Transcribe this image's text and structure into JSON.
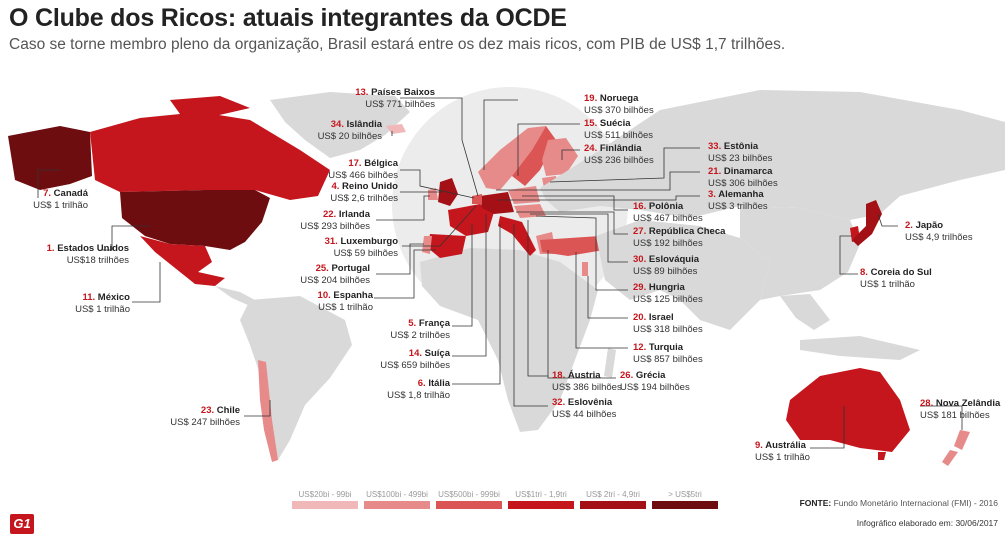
{
  "header": {
    "title": "O Clube dos Ricos: atuais integrantes da OCDE",
    "subtitle": "Caso se torne membro pleno da organização, Brasil estará entre os dez mais ricos, com PIB de US$ 1,7 trilhões."
  },
  "colors": {
    "land": "#d9d9d9",
    "tier1": "#f0b8b8",
    "tier2": "#e78a8a",
    "tier3": "#dc5555",
    "tier4": "#c4161c",
    "tier5": "#a31016",
    "tier6": "#6e0d10"
  },
  "countries": [
    {
      "rank": "1.",
      "name": "Estados Unidos",
      "gdp": "US$18 trilhões"
    },
    {
      "rank": "2.",
      "name": "Japão",
      "gdp": "US$ 4,9 trilhões"
    },
    {
      "rank": "3.",
      "name": "Alemanha",
      "gdp": "US$ 3 trilhões"
    },
    {
      "rank": "4.",
      "name": "Reino Unido",
      "gdp": "US$ 2,6 trilhões"
    },
    {
      "rank": "5.",
      "name": "França",
      "gdp": "US$ 2 trilhões"
    },
    {
      "rank": "6.",
      "name": "Itália",
      "gdp": "US$ 1,8 trilhão"
    },
    {
      "rank": "7.",
      "name": "Canadá",
      "gdp": "US$ 1 trilhão"
    },
    {
      "rank": "8.",
      "name": "Coreia do Sul",
      "gdp": "US$ 1 trilhão"
    },
    {
      "rank": "9.",
      "name": "Austrália",
      "gdp": "US$ 1 trilhão"
    },
    {
      "rank": "10.",
      "name": "Espanha",
      "gdp": "US$ 1 trilhão"
    },
    {
      "rank": "11.",
      "name": "México",
      "gdp": "US$ 1 trilhão"
    },
    {
      "rank": "12.",
      "name": "Turquia",
      "gdp": "US$ 857 bilhões"
    },
    {
      "rank": "13.",
      "name": "Países Baixos",
      "gdp": "US$ 771 bilhões"
    },
    {
      "rank": "14.",
      "name": "Suíça",
      "gdp": "US$ 659 bilhões"
    },
    {
      "rank": "15.",
      "name": "Suécia",
      "gdp": "US$ 511 bilhões"
    },
    {
      "rank": "16.",
      "name": "Polônia",
      "gdp": "US$ 467 bilhões"
    },
    {
      "rank": "17.",
      "name": "Bélgica",
      "gdp": "US$ 466 bilhões"
    },
    {
      "rank": "18.",
      "name": "Áustria",
      "gdp": "US$ 386 bilhões"
    },
    {
      "rank": "19.",
      "name": "Noruega",
      "gdp": "US$ 370 bilhões"
    },
    {
      "rank": "20.",
      "name": "Israel",
      "gdp": "US$ 318 bilhões"
    },
    {
      "rank": "21.",
      "name": "Dinamarca",
      "gdp": "US$ 306 bilhões"
    },
    {
      "rank": "22.",
      "name": "Irlanda",
      "gdp": "US$ 293 bilhões"
    },
    {
      "rank": "23.",
      "name": "Chile",
      "gdp": "US$ 247 bilhões"
    },
    {
      "rank": "24.",
      "name": "Finlândia",
      "gdp": "US$ 236 bilhões"
    },
    {
      "rank": "25.",
      "name": "Portugal",
      "gdp": "US$ 204 bilhões"
    },
    {
      "rank": "26.",
      "name": "Grécia",
      "gdp": "US$ 194 bilhões"
    },
    {
      "rank": "27.",
      "name": "República Checa",
      "gdp": "US$ 192 bilhões"
    },
    {
      "rank": "28.",
      "name": "Nova Zelândia",
      "gdp": "US$ 181 bilhões"
    },
    {
      "rank": "29.",
      "name": "Hungria",
      "gdp": "US$ 125 bilhões"
    },
    {
      "rank": "30.",
      "name": "Eslováquia",
      "gdp": "US$ 89 bilhões"
    },
    {
      "rank": "31.",
      "name": "Luxemburgo",
      "gdp": "US$ 59 bilhões"
    },
    {
      "rank": "32.",
      "name": "Eslovênia",
      "gdp": "US$ 44 bilhões"
    },
    {
      "rank": "33.",
      "name": "Estônia",
      "gdp": "US$ 23 bilhões"
    },
    {
      "rank": "34.",
      "name": "Islândia",
      "gdp": "US$ 20 bilhões"
    }
  ],
  "legend": [
    {
      "label": "US$20bi - 99bi"
    },
    {
      "label": "US$100bi - 499bi"
    },
    {
      "label": "US$500bi - 999bi"
    },
    {
      "label": "US$1tri - 1,9tri"
    },
    {
      "label": "US$ 2tri - 4,9tri"
    },
    {
      "label": "> US$5tri"
    }
  ],
  "footer": {
    "source_label": "FONTE:",
    "source_text": "Fundo Monetário Internacional (FMI) - 2016",
    "date": "Infográfico elaborado em: 30/06/2017",
    "logo": "G1"
  }
}
